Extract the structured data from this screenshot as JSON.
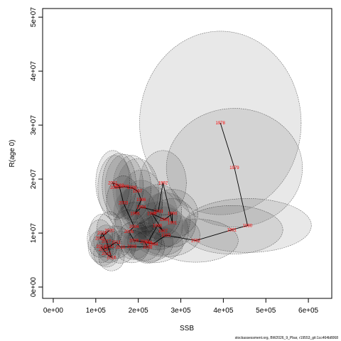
{
  "chart_data": {
    "type": "line",
    "x_label": "SSB",
    "y_label": "R(age 0)",
    "footer": "stockassessment.org, BW2026_9_Pbar, r19553_git:1cc464b8068",
    "labels": [
      "1978",
      "1979",
      "1980",
      "1981",
      "1982",
      "1983",
      "1984",
      "1985",
      "1986",
      "1987",
      "1988",
      "1989",
      "1990",
      "1991",
      "1992",
      "1993",
      "1994",
      "1995",
      "1996",
      "1997",
      "1998",
      "1999",
      "2000",
      "2001",
      "2002",
      "2003",
      "2004",
      "2005",
      "2006",
      "2007",
      "2008",
      "2009",
      "2010",
      "2011",
      "2012",
      "2013",
      "2014",
      "2015",
      "2016",
      "2017",
      "2018",
      "2019",
      "2020"
    ],
    "x": [
      393000,
      426000,
      457000,
      420000,
      335000,
      265000,
      235000,
      222000,
      245000,
      258000,
      232000,
      262000,
      280000,
      280000,
      258000,
      247000,
      207000,
      192000,
      207000,
      198000,
      185000,
      167000,
      145000,
      140000,
      155000,
      165000,
      190000,
      178000,
      190000,
      215000,
      222000,
      185000,
      158000,
      148000,
      132000,
      118000,
      112000,
      125000,
      137000,
      125000,
      115000,
      110000,
      132000
    ],
    "values": [
      30400000,
      22100000,
      11400000,
      10600000,
      8600000,
      9600000,
      8000000,
      8200000,
      11400000,
      10400000,
      13600000,
      12500000,
      13600000,
      11900000,
      19300000,
      14000000,
      14800000,
      13600000,
      16200000,
      17800000,
      18400000,
      18600000,
      18400000,
      19300000,
      18800000,
      15600000,
      11200000,
      10300000,
      8600000,
      8400000,
      7400000,
      7500000,
      7400000,
      8300000,
      7500000,
      7000000,
      7500000,
      6200000,
      5500000,
      8500000,
      10000000,
      9000000,
      10500000
    ],
    "x_error": [
      190000,
      160000,
      150000,
      120000,
      100000,
      80000,
      70000,
      60000,
      60000,
      60000,
      60000,
      60000,
      60000,
      55000,
      55000,
      55000,
      50000,
      50000,
      50000,
      50000,
      45000,
      45000,
      40000,
      40000,
      40000,
      40000,
      45000,
      40000,
      40000,
      40000,
      40000,
      40000,
      35000,
      35000,
      30000,
      30000,
      30000,
      30000,
      30000,
      30000,
      30000,
      30000,
      30000
    ],
    "y_error": [
      17000000,
      11000000,
      5000000,
      4500000,
      4000000,
      4000000,
      3500000,
      3500000,
      4500000,
      4500000,
      5000000,
      5000000,
      4500000,
      4500000,
      6000000,
      5000000,
      5000000,
      5000000,
      5500000,
      6000000,
      6000000,
      6000000,
      6000000,
      6000000,
      6000000,
      5000000,
      4500000,
      4000000,
      3500000,
      3500000,
      3000000,
      3000000,
      3000000,
      3000000,
      3000000,
      3000000,
      3000000,
      2500000,
      2500000,
      3000000,
      3500000,
      3500000,
      3500000
    ],
    "line_color": "#000000",
    "label_color": "#ff0000",
    "xlim": [
      -25000,
      655000
    ],
    "ylim": [
      -2100000,
      51600000
    ],
    "xticks": [
      {
        "value": 0,
        "label": "0e+00"
      },
      {
        "value": 100000,
        "label": "1e+05"
      },
      {
        "value": 200000,
        "label": "2e+05"
      },
      {
        "value": 300000,
        "label": "3e+05"
      },
      {
        "value": 400000,
        "label": "4e+05"
      },
      {
        "value": 500000,
        "label": "5e+05"
      },
      {
        "value": 600000,
        "label": "6e+05"
      }
    ],
    "yticks": [
      {
        "value": 0,
        "label": "0e+00"
      },
      {
        "value": 10000000,
        "label": "1e+07"
      },
      {
        "value": 20000000,
        "label": "2e+07"
      },
      {
        "value": 30000000,
        "label": "3e+07"
      },
      {
        "value": 40000000,
        "label": "4e+07"
      },
      {
        "value": 50000000,
        "label": "5e+07"
      }
    ]
  }
}
